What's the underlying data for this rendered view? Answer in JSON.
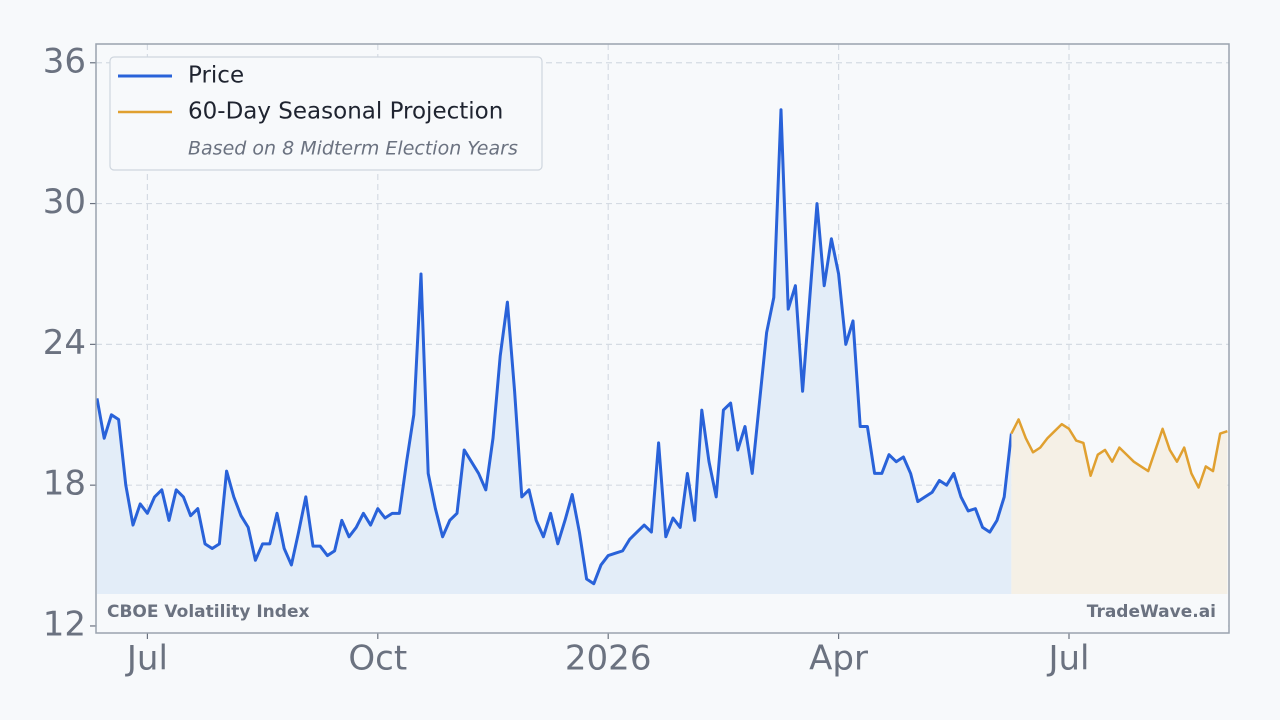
{
  "chart_data": {
    "type": "line",
    "legend_note": "Based on 8 Midterm Election Years",
    "source": "CBOE Volatility Index",
    "watermark": "TradeWave.ai",
    "legend": "upper left",
    "grid": true,
    "categories": [
      null,
      null,
      null,
      null,
      null,
      null,
      null,
      "Jul",
      null,
      null,
      null,
      null,
      null,
      null,
      null,
      null,
      null,
      null,
      null,
      null,
      null,
      null,
      null,
      null,
      null,
      null,
      null,
      null,
      null,
      null,
      null,
      null,
      null,
      null,
      null,
      null,
      null,
      null,
      null,
      "Oct",
      null,
      null,
      null,
      null,
      null,
      null,
      null,
      null,
      null,
      null,
      null,
      null,
      null,
      null,
      null,
      null,
      null,
      null,
      null,
      null,
      null,
      null,
      null,
      null,
      null,
      null,
      null,
      null,
      null,
      null,
      null,
      "2026",
      null,
      null,
      null,
      null,
      null,
      null,
      null,
      null,
      null,
      null,
      null,
      null,
      null,
      null,
      null,
      null,
      null,
      null,
      null,
      null,
      null,
      null,
      null,
      null,
      null,
      null,
      null,
      null,
      null,
      null,
      null,
      "Apr",
      null,
      null,
      null,
      null,
      null,
      null,
      null,
      null,
      null,
      null,
      null,
      null,
      null,
      null,
      null,
      null,
      null,
      null,
      null,
      null,
      null,
      null,
      null,
      null,
      null,
      null,
      null,
      null,
      null,
      null,
      null,
      "Jul",
      null,
      null,
      null,
      null,
      null,
      null,
      null,
      null,
      null,
      null,
      null,
      null,
      null,
      null,
      null,
      null,
      null,
      null,
      null,
      null,
      null,
      null
    ],
    "series": [
      {
        "name": "Price",
        "color": "#2962d9",
        "fill": "#e3edf8",
        "values": [
          21.7,
          20.0,
          21.0,
          20.8,
          18.0,
          16.3,
          17.2,
          16.8,
          17.5,
          17.8,
          16.5,
          17.8,
          17.5,
          16.7,
          17.0,
          15.5,
          15.3,
          15.5,
          18.6,
          17.5,
          16.7,
          16.2,
          14.8,
          15.5,
          15.5,
          16.8,
          15.3,
          14.6,
          16.0,
          17.5,
          15.4,
          15.4,
          15.0,
          15.2,
          16.5,
          15.8,
          16.2,
          16.8,
          16.3,
          17.0,
          16.6,
          16.8,
          16.8,
          19.0,
          21.0,
          27.0,
          18.5,
          17.0,
          15.8,
          16.5,
          16.8,
          19.5,
          19.0,
          18.5,
          17.8,
          20.0,
          23.5,
          25.8,
          22.0,
          17.5,
          17.8,
          16.5,
          15.8,
          16.8,
          15.5,
          16.5,
          17.6,
          16.0,
          14.0,
          13.8,
          14.6,
          15.0,
          15.1,
          15.2,
          15.7,
          16.0,
          16.3,
          16.0,
          19.8,
          15.8,
          16.6,
          16.2,
          18.5,
          16.5,
          21.2,
          19.0,
          17.5,
          21.2,
          21.5,
          19.5,
          20.5,
          18.5,
          21.5,
          24.5,
          26.0,
          34.0,
          25.5,
          26.5,
          22.0,
          26.0,
          30.0,
          26.5,
          28.5,
          27.0,
          24.0,
          25.0,
          20.5,
          20.5,
          18.5,
          18.5,
          19.3,
          19.0,
          19.2,
          18.5,
          17.3,
          17.5,
          17.7,
          18.2,
          18.0,
          18.5,
          17.5,
          16.9,
          17.0,
          16.2,
          16.0,
          16.5,
          17.5,
          20.2,
          null,
          null,
          null,
          null,
          null,
          null,
          null,
          null,
          null,
          null,
          null,
          null,
          null,
          null,
          null,
          null,
          null,
          null,
          null,
          null,
          null,
          null,
          null,
          null,
          null,
          null,
          null,
          null,
          null,
          null
        ]
      },
      {
        "name": "60-Day Seasonal Projection",
        "color": "#e0a030",
        "fill": "#f5f0e6",
        "values": [
          null,
          null,
          null,
          null,
          null,
          null,
          null,
          null,
          null,
          null,
          null,
          null,
          null,
          null,
          null,
          null,
          null,
          null,
          null,
          null,
          null,
          null,
          null,
          null,
          null,
          null,
          null,
          null,
          null,
          null,
          null,
          null,
          null,
          null,
          null,
          null,
          null,
          null,
          null,
          null,
          null,
          null,
          null,
          null,
          null,
          null,
          null,
          null,
          null,
          null,
          null,
          null,
          null,
          null,
          null,
          null,
          null,
          null,
          null,
          null,
          null,
          null,
          null,
          null,
          null,
          null,
          null,
          null,
          null,
          null,
          null,
          null,
          null,
          null,
          null,
          null,
          null,
          null,
          null,
          null,
          null,
          null,
          null,
          null,
          null,
          null,
          null,
          null,
          null,
          null,
          null,
          null,
          null,
          null,
          null,
          null,
          null,
          null,
          null,
          null,
          null,
          null,
          null,
          null,
          null,
          null,
          null,
          null,
          null,
          null,
          null,
          null,
          null,
          null,
          null,
          null,
          null,
          null,
          null,
          null,
          null,
          null,
          null,
          null,
          null,
          null,
          null,
          20.2,
          20.8,
          20.0,
          19.4,
          19.6,
          20.0,
          20.3,
          20.6,
          20.4,
          19.9,
          19.8,
          18.4,
          19.3,
          19.5,
          19.0,
          19.6,
          19.3,
          19.0,
          18.8,
          18.6,
          19.5,
          20.4,
          19.5,
          19.0,
          19.6,
          18.5,
          17.9,
          18.8,
          18.6,
          20.2,
          20.3
        ]
      }
    ],
    "ylim": [
      11.7,
      36.8
    ],
    "yticks": [
      12,
      18,
      24,
      30,
      36
    ]
  }
}
